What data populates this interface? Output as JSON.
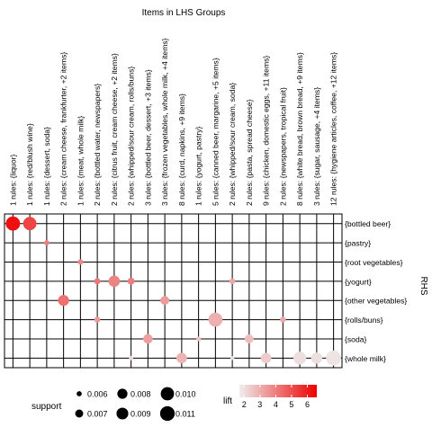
{
  "chart_data": {
    "type": "scatter",
    "title": "Items in LHS Groups",
    "ylabel": "RHS",
    "lhs_groups": [
      "1 rules: {liquor}",
      "1 rules: {red/blush wine}",
      "1 rules: {dessert, soda}",
      "2 rules: {cream cheese, frankfurter, +2 items}",
      "1 rules: {meat, whole milk}",
      "2 rules: {bottled water, newspapers}",
      "2 rules: {citrus fruit, cream cheese, +2 items}",
      "2 rules: {whipped/sour cream, rolls/buns}",
      "3 rules: {bottled beer, dessert, +3 items}",
      "3 rules: {frozen vegetables, whole milk, +4 items}",
      "8 rules: {curd, napkins, +9 items}",
      "1 rules: {yogurt, pastry}",
      "5 rules: {canned beer, margarine, +5 items}",
      "2 rules: {whipped/sour cream, soda}",
      "2 rules: {pasta, spread cheese}",
      "9 rules: {chicken, domestic eggs, +11 items}",
      "2 rules: {newspapers, tropical fruit}",
      "8 rules: {white bread, brown bread, +9 items}",
      "3 rules: {sugar, sausage, +4 items}",
      "12 rules: {hygiene articles, coffee, +12 items}"
    ],
    "rhs_items": [
      "{bottled beer}",
      "{pastry}",
      "{root vegetables}",
      "{yogurt}",
      "{other vegetables}",
      "{rolls/buns}",
      "{soda}",
      "{whole milk}"
    ],
    "points": [
      {
        "lhs": 0,
        "rhs": 0,
        "support": 0.0107,
        "lift": 6.3
      },
      {
        "lhs": 1,
        "rhs": 0,
        "support": 0.01,
        "lift": 5.2
      },
      {
        "lhs": 2,
        "rhs": 1,
        "support": 0.006,
        "lift": 4.0
      },
      {
        "lhs": 3,
        "rhs": 4,
        "support": 0.0085,
        "lift": 4.3
      },
      {
        "lhs": 4,
        "rhs": 2,
        "support": 0.0061,
        "lift": 3.8
      },
      {
        "lhs": 5,
        "rhs": 3,
        "support": 0.0063,
        "lift": 4.2
      },
      {
        "lhs": 5,
        "rhs": 5,
        "support": 0.0062,
        "lift": 3.5
      },
      {
        "lhs": 6,
        "rhs": 3,
        "support": 0.0087,
        "lift": 3.9
      },
      {
        "lhs": 7,
        "rhs": 3,
        "support": 0.0066,
        "lift": 4.0
      },
      {
        "lhs": 7,
        "rhs": 7,
        "support": 0.0058,
        "lift": 2.2
      },
      {
        "lhs": 8,
        "rhs": 6,
        "support": 0.0077,
        "lift": 3.3
      },
      {
        "lhs": 9,
        "rhs": 4,
        "support": 0.0074,
        "lift": 3.4
      },
      {
        "lhs": 10,
        "rhs": 7,
        "support": 0.0082,
        "lift": 2.9
      },
      {
        "lhs": 11,
        "rhs": 6,
        "support": 0.0059,
        "lift": 2.6
      },
      {
        "lhs": 12,
        "rhs": 5,
        "support": 0.0105,
        "lift": 3.0
      },
      {
        "lhs": 13,
        "rhs": 3,
        "support": 0.0062,
        "lift": 3.2
      },
      {
        "lhs": 13,
        "rhs": 7,
        "support": 0.0057,
        "lift": 2.0
      },
      {
        "lhs": 14,
        "rhs": 6,
        "support": 0.0074,
        "lift": 2.7
      },
      {
        "lhs": 15,
        "rhs": 7,
        "support": 0.0082,
        "lift": 2.4
      },
      {
        "lhs": 16,
        "rhs": 5,
        "support": 0.0062,
        "lift": 3.1
      },
      {
        "lhs": 17,
        "rhs": 7,
        "support": 0.0096,
        "lift": 2.0
      },
      {
        "lhs": 18,
        "rhs": 7,
        "support": 0.0086,
        "lift": 2.0
      },
      {
        "lhs": 19,
        "rhs": 7,
        "support": 0.0112,
        "lift": 1.9
      }
    ],
    "legend_support": {
      "title": "support",
      "labels": [
        "0.006",
        "0.007",
        "0.008",
        "0.009",
        "0.010",
        "0.011"
      ],
      "values": [
        0.006,
        0.007,
        0.008,
        0.009,
        0.01,
        0.011
      ]
    },
    "legend_lift": {
      "title": "lift",
      "labels": [
        "2",
        "3",
        "4",
        "5",
        "6"
      ],
      "range": [
        1.7,
        6.6
      ]
    },
    "colors": {
      "low": "#EEEEEE",
      "high": "#EE0000"
    },
    "grid": true,
    "legend_placement": "bottom"
  }
}
